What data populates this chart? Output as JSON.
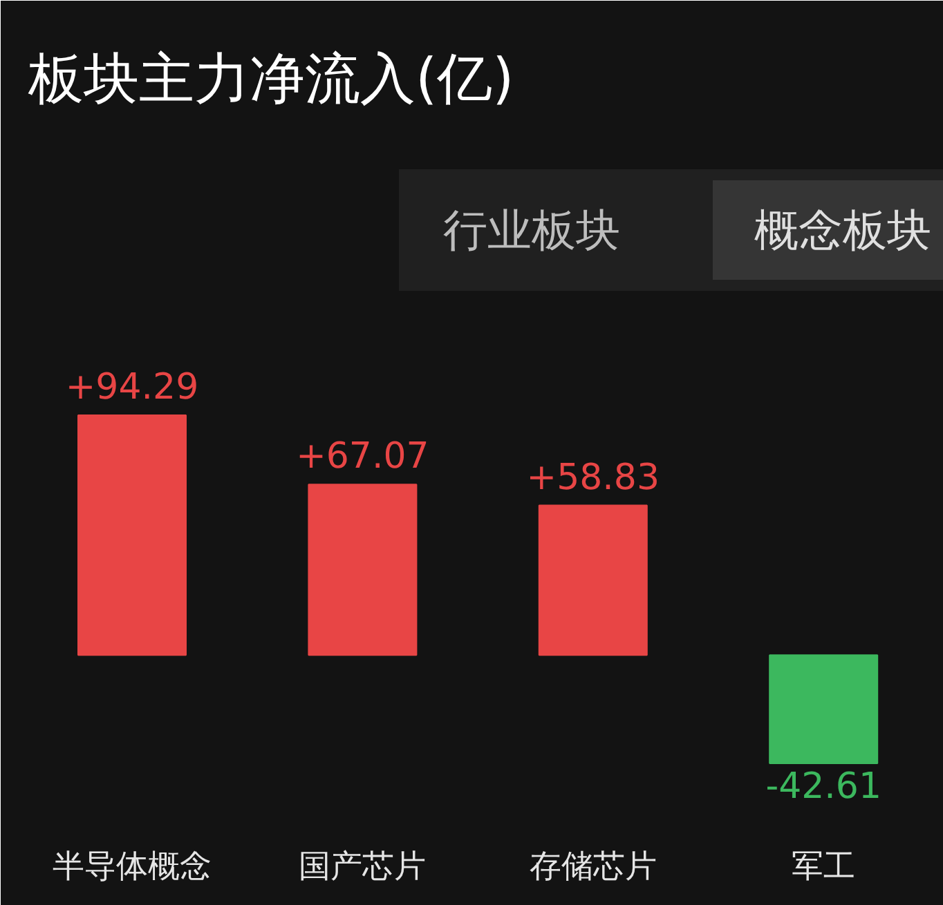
{
  "chart_data": {
    "type": "bar",
    "title": "板块主力净流入(亿)",
    "categories": [
      "半导体概念",
      "国产芯片",
      "存储芯片",
      "军工"
    ],
    "values": [
      94.29,
      67.07,
      58.83,
      -42.61
    ],
    "colors": [
      "#e84545",
      "#e84545",
      "#e84545",
      "#3cb85e"
    ],
    "value_labels": [
      "+94.29",
      "+67.07",
      "+58.83",
      "-42.61"
    ],
    "annotations": [
      "行业板块",
      "概念板块"
    ]
  }
}
